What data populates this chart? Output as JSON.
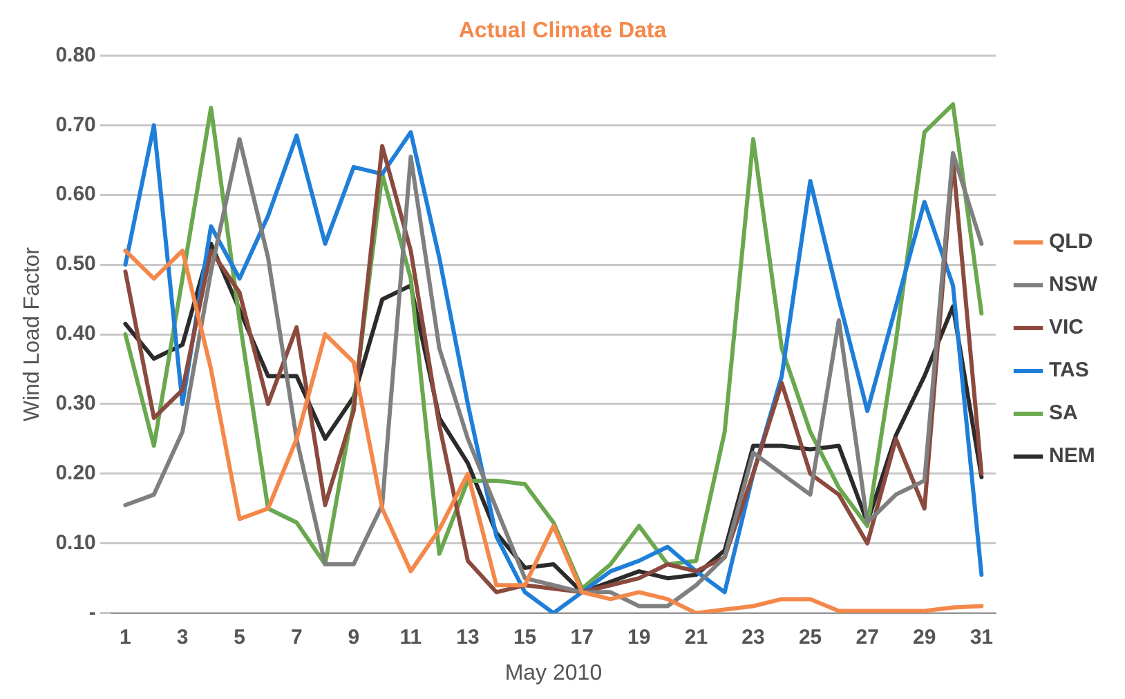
{
  "chart_data": {
    "type": "line",
    "title": "Actual Climate Data",
    "xlabel": "May 2010",
    "ylabel": "Wind Load Factor",
    "x": [
      1,
      2,
      3,
      4,
      5,
      6,
      7,
      8,
      9,
      10,
      11,
      12,
      13,
      14,
      15,
      16,
      17,
      18,
      19,
      20,
      21,
      22,
      23,
      24,
      25,
      26,
      27,
      28,
      29,
      30,
      31
    ],
    "xlim": [
      0.5,
      31.5
    ],
    "xticks": [
      1,
      3,
      5,
      7,
      9,
      11,
      13,
      15,
      17,
      19,
      21,
      23,
      25,
      27,
      29,
      31
    ],
    "ylim": [
      0,
      0.8
    ],
    "yticks": [
      {
        "value": 0,
        "label": "-"
      },
      {
        "value": 0.1,
        "label": "0.10"
      },
      {
        "value": 0.2,
        "label": "0.20"
      },
      {
        "value": 0.3,
        "label": "0.30"
      },
      {
        "value": 0.4,
        "label": "0.40"
      },
      {
        "value": 0.5,
        "label": "0.50"
      },
      {
        "value": 0.6,
        "label": "0.60"
      },
      {
        "value": 0.7,
        "label": "0.70"
      },
      {
        "value": 0.8,
        "label": "0.80"
      }
    ],
    "grid": "y",
    "legend": "right",
    "marker": "none",
    "line_style": "solid",
    "series": [
      {
        "name": "QLD",
        "color": "#f4884a",
        "values": [
          0.52,
          0.48,
          0.52,
          0.35,
          0.135,
          0.15,
          0.25,
          0.4,
          0.36,
          0.15,
          0.06,
          0.12,
          0.2,
          0.04,
          0.04,
          0.125,
          0.03,
          0.02,
          0.03,
          0.02,
          0.0,
          0.005,
          0.01,
          0.02,
          0.02,
          0.003,
          0.003,
          0.003,
          0.003,
          0.008,
          0.01
        ]
      },
      {
        "name": "NSW",
        "color": "#7f7f7f",
        "values": [
          0.155,
          0.17,
          0.26,
          0.49,
          0.68,
          0.51,
          0.25,
          0.07,
          0.07,
          0.155,
          0.655,
          0.38,
          0.25,
          0.15,
          0.05,
          0.04,
          0.03,
          0.03,
          0.01,
          0.01,
          0.04,
          0.08,
          0.23,
          0.2,
          0.17,
          0.42,
          0.13,
          0.17,
          0.19,
          0.66,
          0.53
        ]
      },
      {
        "name": "VIC",
        "color": "#8b4a3e",
        "values": [
          0.49,
          0.28,
          0.32,
          0.52,
          0.46,
          0.3,
          0.41,
          0.155,
          0.29,
          0.67,
          0.52,
          0.27,
          0.075,
          0.03,
          0.04,
          0.035,
          0.03,
          0.04,
          0.05,
          0.07,
          0.06,
          0.08,
          0.2,
          0.33,
          0.2,
          0.17,
          0.1,
          0.25,
          0.15,
          0.65,
          0.2
        ]
      },
      {
        "name": "TAS",
        "color": "#1f7fd8",
        "values": [
          0.5,
          0.7,
          0.3,
          0.555,
          0.48,
          0.57,
          0.685,
          0.53,
          0.64,
          0.63,
          0.69,
          0.51,
          0.3,
          0.11,
          0.03,
          0.0,
          0.03,
          0.06,
          0.075,
          0.095,
          0.06,
          0.03,
          0.2,
          0.34,
          0.62,
          0.45,
          0.29,
          0.44,
          0.59,
          0.47,
          0.055
        ]
      },
      {
        "name": "SA",
        "color": "#6aa84f",
        "values": [
          0.4,
          0.24,
          0.48,
          0.725,
          0.42,
          0.15,
          0.13,
          0.07,
          0.3,
          0.63,
          0.48,
          0.085,
          0.19,
          0.19,
          0.185,
          0.13,
          0.035,
          0.07,
          0.125,
          0.07,
          0.075,
          0.26,
          0.68,
          0.38,
          0.26,
          0.18,
          0.125,
          0.39,
          0.69,
          0.73,
          0.43
        ]
      },
      {
        "name": "NEM",
        "color": "#2b2b2b",
        "values": [
          0.415,
          0.365,
          0.385,
          0.53,
          0.435,
          0.34,
          0.34,
          0.25,
          0.31,
          0.45,
          0.47,
          0.28,
          0.215,
          0.115,
          0.065,
          0.07,
          0.03,
          0.045,
          0.06,
          0.05,
          0.055,
          0.09,
          0.24,
          0.24,
          0.235,
          0.24,
          0.13,
          0.255,
          0.34,
          0.44,
          0.195
        ]
      }
    ]
  }
}
